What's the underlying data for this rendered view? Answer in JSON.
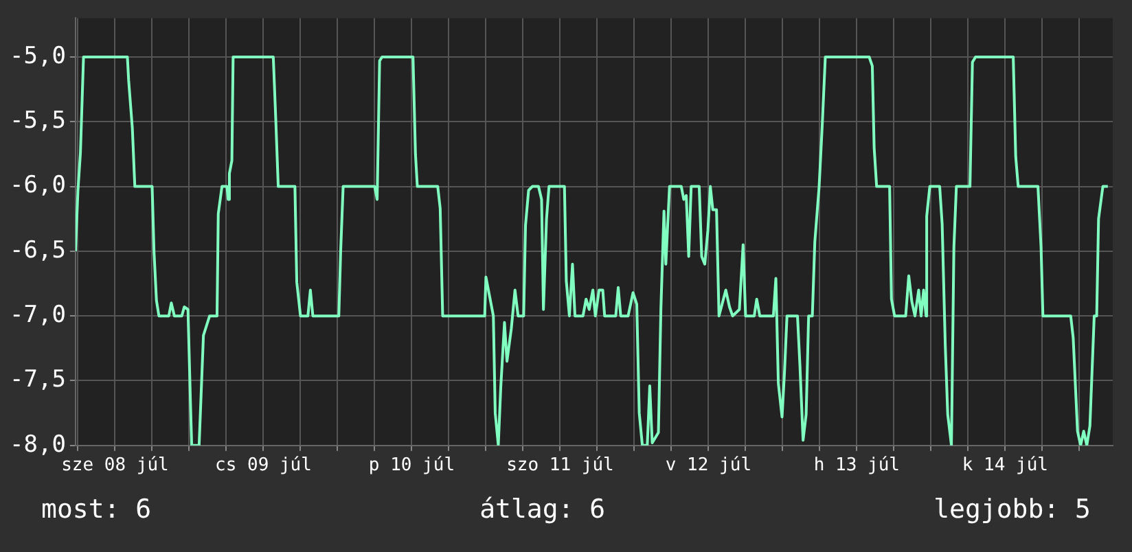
{
  "chart_data": {
    "type": "line",
    "legend": false,
    "grid": true,
    "marker": "none",
    "line_style": "solid",
    "x": [
      "--07-08T05:36",
      "--07-08T06:00",
      "--07-08T06:24",
      "--07-08T06:54",
      "--07-08T14:00",
      "--07-08T14:12",
      "--07-08T14:48",
      "--07-08T15:12",
      "--07-08T18:00",
      "--07-08T18:18",
      "--07-08T18:42",
      "--07-08T19:06",
      "--07-08T20:42",
      "--07-08T21:06",
      "--07-08T21:36",
      "--07-08T22:48",
      "--07-08T23:12",
      "--07-08T23:48",
      "--07-09T00:12",
      "--07-09T00:24",
      "--07-09T01:36",
      "--07-09T02:18",
      "--07-09T03:18",
      "--07-09T04:30",
      "--07-09T04:42",
      "--07-09T05:18",
      "--07-09T06:06",
      "--07-09T06:18",
      "--07-09T06:30",
      "--07-09T06:54",
      "--07-09T07:06",
      "--07-09T13:36",
      "--07-09T14:00",
      "--07-09T14:24",
      "--07-09T17:06",
      "--07-09T17:24",
      "--07-09T18:00",
      "--07-09T19:12",
      "--07-09T19:36",
      "--07-09T20:00",
      "--07-10T00:12",
      "--07-10T00:30",
      "--07-10T00:54",
      "--07-10T06:00",
      "--07-10T06:24",
      "--07-10T06:48",
      "--07-10T07:12",
      "--07-10T12:12",
      "--07-10T12:36",
      "--07-10T12:54",
      "--07-10T16:12",
      "--07-10T16:36",
      "--07-10T17:00",
      "--07-10T23:48",
      "--07-11T00:00",
      "--07-11T00:36",
      "--07-11T01:12",
      "--07-11T01:30",
      "--07-11T02:00",
      "--07-11T02:24",
      "--07-11T03:00",
      "--07-11T03:24",
      "--07-11T04:06",
      "--07-11T04:42",
      "--07-11T05:12",
      "--07-11T06:06",
      "--07-11T06:24",
      "--07-11T06:54",
      "--07-11T07:30",
      "--07-11T08:30",
      "--07-11T09:00",
      "--07-11T09:18",
      "--07-11T09:48",
      "--07-11T10:12",
      "--07-11T12:42",
      "--07-11T13:00",
      "--07-11T13:30",
      "--07-11T14:00",
      "--07-11T14:24",
      "--07-11T15:42",
      "--07-11T16:12",
      "--07-11T16:42",
      "--07-11T17:18",
      "--07-11T17:42",
      "--07-11T18:18",
      "--07-11T18:54",
      "--07-11T19:12",
      "--07-11T21:00",
      "--07-11T21:24",
      "--07-11T21:48",
      "--07-11T23:00",
      "--07-11T23:48",
      "--07-12T00:24",
      "--07-12T00:48",
      "--07-12T01:18",
      "--07-12T02:06",
      "--07-12T02:30",
      "--07-12T02:54",
      "--07-12T03:54",
      "--07-12T04:18",
      "--07-12T04:48",
      "--07-12T05:06",
      "--07-12T05:42",
      "--07-12T07:36",
      "--07-12T08:00",
      "--07-12T08:24",
      "--07-12T08:48",
      "--07-12T09:12",
      "--07-12T10:30",
      "--07-12T10:54",
      "--07-12T11:24",
      "--07-12T11:54",
      "--07-12T12:18",
      "--07-12T12:42",
      "--07-12T13:18",
      "--07-12T13:42",
      "--07-12T14:48",
      "--07-12T15:24",
      "--07-12T15:54",
      "--07-12T17:00",
      "--07-12T17:36",
      "--07-12T18:00",
      "--07-12T19:24",
      "--07-12T19:48",
      "--07-12T20:18",
      "--07-12T22:30",
      "--07-12T22:54",
      "--07-12T23:18",
      "--07-12T23:54",
      "--07-13T00:18",
      "--07-13T00:42",
      "--07-13T02:24",
      "--07-13T02:48",
      "--07-13T03:18",
      "--07-13T03:48",
      "--07-13T04:12",
      "--07-13T04:48",
      "--07-13T05:12",
      "--07-13T05:54",
      "--07-13T06:24",
      "--07-13T06:54",
      "--07-13T14:00",
      "--07-13T14:30",
      "--07-13T14:48",
      "--07-13T15:12",
      "--07-13T17:18",
      "--07-13T17:36",
      "--07-13T18:06",
      "--07-13T19:54",
      "--07-13T20:24",
      "--07-13T20:54",
      "--07-13T21:24",
      "--07-13T22:00",
      "--07-13T22:24",
      "--07-13T22:48",
      "--07-13T23:12",
      "--07-13T23:18",
      "--07-13T23:48",
      "--07-14T01:24",
      "--07-14T01:48",
      "--07-14T02:18",
      "--07-14T02:42",
      "--07-14T03:18",
      "--07-14T03:42",
      "--07-14T04:06",
      "--07-14T06:18",
      "--07-14T06:42",
      "--07-14T07:12",
      "--07-14T13:18",
      "--07-14T13:42",
      "--07-14T14:06",
      "--07-14T17:18",
      "--07-14T17:48",
      "--07-14T18:06",
      "--07-14T22:36",
      "--07-14T23:00",
      "--07-14T23:42",
      "--07-15T00:12",
      "--07-15T00:42",
      "--07-15T01:12",
      "--07-15T01:42",
      "--07-15T02:24",
      "--07-15T02:48",
      "--07-15T03:06",
      "--07-15T03:48",
      "--07-15T04:36"
    ],
    "series": [
      {
        "color": "#80ffc0",
        "values": [
          -6.5,
          -6.03,
          -5.74,
          -5.0,
          -5.0,
          -5.18,
          -5.55,
          -6.0,
          -6.0,
          -6.5,
          -6.88,
          -7.0,
          -7.0,
          -6.9,
          -7.0,
          -7.0,
          -6.93,
          -6.95,
          -7.67,
          -8.0,
          -8.0,
          -7.15,
          -7.0,
          -7.0,
          -6.21,
          -6.0,
          -6.0,
          -6.1,
          -5.9,
          -5.8,
          -5.0,
          -5.0,
          -5.48,
          -6.0,
          -6.0,
          -6.74,
          -7.0,
          -7.0,
          -6.8,
          -7.0,
          -7.0,
          -6.5,
          -6.0,
          -6.0,
          -6.1,
          -5.03,
          -5.0,
          -5.0,
          -5.75,
          -6.0,
          -6.0,
          -6.17,
          -7.0,
          -7.0,
          -6.7,
          -6.85,
          -7.0,
          -7.75,
          -8.0,
          -7.55,
          -7.05,
          -7.35,
          -7.1,
          -6.8,
          -7.0,
          -7.0,
          -6.3,
          -6.03,
          -6.0,
          -6.0,
          -6.1,
          -6.95,
          -6.25,
          -6.0,
          -6.0,
          -6.73,
          -7.0,
          -6.6,
          -7.0,
          -7.0,
          -6.87,
          -6.95,
          -6.8,
          -7.0,
          -6.8,
          -6.8,
          -7.0,
          -7.0,
          -6.78,
          -7.0,
          -7.0,
          -6.82,
          -6.91,
          -7.75,
          -8.0,
          -8.0,
          -7.54,
          -7.98,
          -7.9,
          -6.95,
          -6.19,
          -6.6,
          -6.0,
          -6.0,
          -6.1,
          -6.07,
          -6.54,
          -6.0,
          -6.0,
          -6.54,
          -6.6,
          -6.34,
          -6.0,
          -6.18,
          -6.18,
          -7.0,
          -6.8,
          -6.93,
          -7.0,
          -6.95,
          -6.45,
          -7.0,
          -7.0,
          -6.87,
          -7.0,
          -7.0,
          -6.71,
          -7.52,
          -7.78,
          -7.43,
          -7.0,
          -7.0,
          -7.39,
          -7.96,
          -7.76,
          -7.0,
          -7.0,
          -6.43,
          -6.0,
          -5.53,
          -5.0,
          -5.0,
          -5.07,
          -5.7,
          -6.0,
          -6.0,
          -6.87,
          -7.0,
          -7.0,
          -6.69,
          -6.89,
          -7.0,
          -6.8,
          -7.0,
          -6.8,
          -7.0,
          -6.23,
          -6.0,
          -6.0,
          -6.29,
          -7.22,
          -7.76,
          -8.0,
          -6.47,
          -6.0,
          -6.0,
          -5.04,
          -5.0,
          -5.0,
          -5.77,
          -6.0,
          -6.0,
          -6.47,
          -7.0,
          -7.0,
          -7.17,
          -7.89,
          -8.0,
          -7.89,
          -8.0,
          -7.85,
          -7.0,
          -7.0,
          -6.25,
          -6.0,
          -6.0
        ]
      }
    ],
    "xlim": [
      "--07-08T05:36",
      "--07-15T05:24"
    ],
    "xticks": [
      {
        "value": "--07-08T06:00",
        "label": null
      },
      {
        "value": "--07-08T12:00",
        "label": "sze 08 júl"
      },
      {
        "value": "--07-08T18:00",
        "label": null
      },
      {
        "value": "--07-09T00:00",
        "label": null
      },
      {
        "value": "--07-09T06:00",
        "label": null
      },
      {
        "value": "--07-09T12:00",
        "label": "cs 09 júl"
      },
      {
        "value": "--07-09T18:00",
        "label": null
      },
      {
        "value": "--07-10T00:00",
        "label": null
      },
      {
        "value": "--07-10T06:00",
        "label": null
      },
      {
        "value": "--07-10T12:00",
        "label": "p 10 júl"
      },
      {
        "value": "--07-10T18:00",
        "label": null
      },
      {
        "value": "--07-11T00:00",
        "label": null
      },
      {
        "value": "--07-11T06:00",
        "label": null
      },
      {
        "value": "--07-11T12:00",
        "label": "szo 11 júl"
      },
      {
        "value": "--07-11T18:00",
        "label": null
      },
      {
        "value": "--07-12T00:00",
        "label": null
      },
      {
        "value": "--07-12T06:00",
        "label": null
      },
      {
        "value": "--07-12T12:00",
        "label": "v 12 júl"
      },
      {
        "value": "--07-12T18:00",
        "label": null
      },
      {
        "value": "--07-13T00:00",
        "label": null
      },
      {
        "value": "--07-13T06:00",
        "label": null
      },
      {
        "value": "--07-13T12:00",
        "label": "h 13 júl"
      },
      {
        "value": "--07-13T18:00",
        "label": null
      },
      {
        "value": "--07-14T00:00",
        "label": null
      },
      {
        "value": "--07-14T06:00",
        "label": null
      },
      {
        "value": "--07-14T12:00",
        "label": "k 14 júl"
      },
      {
        "value": "--07-14T18:00",
        "label": null
      },
      {
        "value": "--07-15T00:00",
        "label": null
      }
    ],
    "ylim": [
      -8,
      -4.7
    ],
    "yticks": [
      {
        "value": -8,
        "label": "-8,0"
      },
      {
        "value": -7.5,
        "label": "-7,5"
      },
      {
        "value": -7,
        "label": "-7,0"
      },
      {
        "value": -6.5,
        "label": "-6,5"
      },
      {
        "value": -6,
        "label": "-6,0"
      },
      {
        "value": -5.5,
        "label": "-5,5"
      },
      {
        "value": -5,
        "label": "-5,0"
      }
    ],
    "annotations": [
      "most: 6",
      "átlag: 6",
      "legjobb: 5"
    ]
  }
}
